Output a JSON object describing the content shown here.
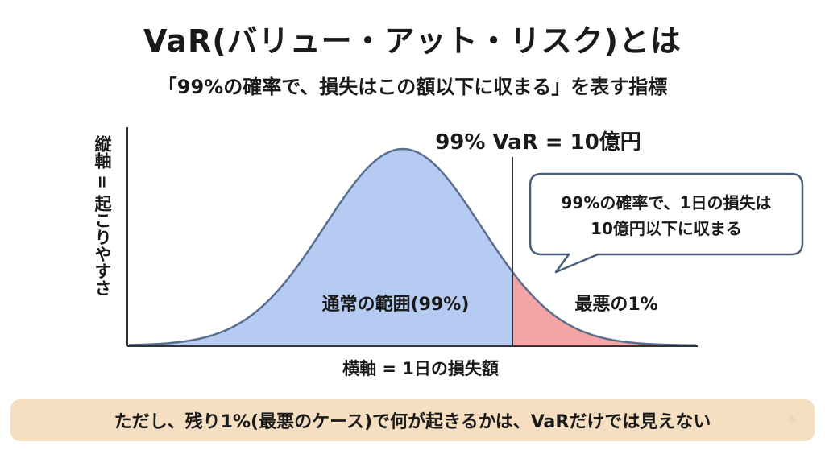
{
  "title": "VaR(バリュー・アット・リスク)とは",
  "subtitle": "「99%の確率で、損失はこの額以下に収まる」を表す指標",
  "chart_data": {
    "type": "area",
    "xlabel": "横軸 = 1日の損失額",
    "ylabel": "縦軸 = 起こりやすさ",
    "var_label": "99% VaR = 10億円",
    "normal_region_label": "通常の範囲(99%)",
    "tail_region_label": "最悪の1%",
    "normal_share_percent": 99,
    "tail_share_percent": 1,
    "var_value": 10,
    "var_unit": "億円",
    "normal_color": "#b6cbf1",
    "tail_color": "#f4a4a4",
    "callout": {
      "line1": "99%の確率で、1日の損失は",
      "line2": "10億円以下に収まる"
    }
  },
  "footer": {
    "text": "ただし、残り1%(最悪のケース)で何が起きるかは、VaRだけでは見えない"
  },
  "colors": {
    "footer_bg": "#f5dfc0",
    "curve_stroke": "#5a6f8f",
    "axis": "#333333"
  },
  "icons": [
    "sparkle-icon"
  ]
}
